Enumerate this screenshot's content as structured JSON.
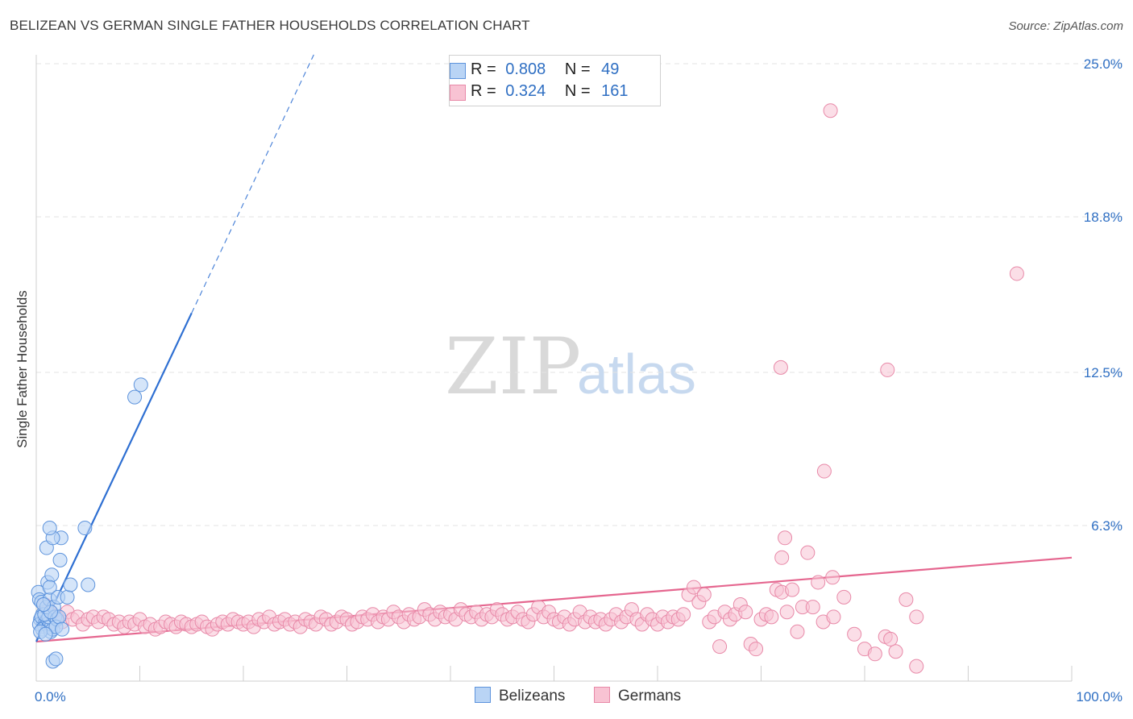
{
  "header": {
    "title": "BELIZEAN VS GERMAN SINGLE FATHER HOUSEHOLDS CORRELATION CHART",
    "source": "Source: ZipAtlas.com"
  },
  "watermark": {
    "zip": "ZIP",
    "atlas": "atlas"
  },
  "legend": {
    "r_label": "R =",
    "n_label": "N =",
    "series": [
      {
        "name": "Belizeans",
        "r": "0.808",
        "n": "49",
        "fill": "#b9d4f5",
        "stroke": "#5d93dc"
      },
      {
        "name": "Germans",
        "r": "0.324",
        "n": "161",
        "fill": "#f8c3d3",
        "stroke": "#e889a8"
      }
    ]
  },
  "chart_data": {
    "type": "scatter",
    "title": "BELIZEAN VS GERMAN SINGLE FATHER HOUSEHOLDS CORRELATION CHART",
    "xlabel": "",
    "ylabel": "Single Father Households",
    "xlim": [
      0,
      100
    ],
    "ylim": [
      0,
      25
    ],
    "x_tick_labels": [
      "0.0%",
      "100.0%"
    ],
    "y_ticks": [
      6.3,
      12.5,
      18.8,
      25.0
    ],
    "y_tick_labels": [
      "6.3%",
      "12.5%",
      "18.8%",
      "25.0%"
    ],
    "grid": true,
    "colors": {
      "belizeans": "#2e6fd2",
      "germans": "#e5668f",
      "axis_text": "#2f6fc3"
    },
    "series": [
      {
        "name": "Belizeans",
        "trend": {
          "x0": 0.0,
          "y0": 1.6,
          "x1": 15.0,
          "y1": 14.9,
          "x_dash_end": 26.8
        },
        "points": [
          [
            0.2,
            3.6
          ],
          [
            0.3,
            3.3
          ],
          [
            0.5,
            3.2
          ],
          [
            0.6,
            2.7
          ],
          [
            0.4,
            2.5
          ],
          [
            0.7,
            2.4
          ],
          [
            0.3,
            2.3
          ],
          [
            0.8,
            2.2
          ],
          [
            0.5,
            2.6
          ],
          [
            0.9,
            2.4
          ],
          [
            1.0,
            2.3
          ],
          [
            0.6,
            2.1
          ],
          [
            1.1,
            2.5
          ],
          [
            1.2,
            2.2
          ],
          [
            1.3,
            2.4
          ],
          [
            1.4,
            2.0
          ],
          [
            1.5,
            2.3
          ],
          [
            1.6,
            2.1
          ],
          [
            1.2,
            2.6
          ],
          [
            0.8,
            2.7
          ],
          [
            1.0,
            3.0
          ],
          [
            1.3,
            3.3
          ],
          [
            1.7,
            3.0
          ],
          [
            1.8,
            2.6
          ],
          [
            2.0,
            2.5
          ],
          [
            1.9,
            2.2
          ],
          [
            2.2,
            2.6
          ],
          [
            2.5,
            2.1
          ],
          [
            1.1,
            4.0
          ],
          [
            1.5,
            4.3
          ],
          [
            1.3,
            3.8
          ],
          [
            2.1,
            3.4
          ],
          [
            3.0,
            3.4
          ],
          [
            3.3,
            3.9
          ],
          [
            2.3,
            4.9
          ],
          [
            2.4,
            5.8
          ],
          [
            1.0,
            5.4
          ],
          [
            1.6,
            5.8
          ],
          [
            1.3,
            6.2
          ],
          [
            4.7,
            6.2
          ],
          [
            5.0,
            3.9
          ],
          [
            9.5,
            11.5
          ],
          [
            10.1,
            12.0
          ],
          [
            1.6,
            0.8
          ],
          [
            1.9,
            0.9
          ],
          [
            0.4,
            2.0
          ],
          [
            0.9,
            1.9
          ],
          [
            1.4,
            2.8
          ],
          [
            0.7,
            3.1
          ]
        ]
      },
      {
        "name": "Germans",
        "trend": {
          "x0": 0.0,
          "y0": 1.6,
          "x1": 100.0,
          "y1": 5.0
        },
        "points": [
          [
            0.8,
            3.1
          ],
          [
            1.2,
            2.9
          ],
          [
            1.5,
            2.7
          ],
          [
            2.0,
            2.6
          ],
          [
            2.5,
            2.4
          ],
          [
            3.0,
            2.8
          ],
          [
            3.5,
            2.5
          ],
          [
            4.0,
            2.6
          ],
          [
            4.5,
            2.3
          ],
          [
            5.0,
            2.5
          ],
          [
            5.5,
            2.6
          ],
          [
            6.0,
            2.4
          ],
          [
            6.5,
            2.6
          ],
          [
            7.0,
            2.5
          ],
          [
            7.5,
            2.3
          ],
          [
            8.0,
            2.4
          ],
          [
            8.5,
            2.2
          ],
          [
            9.0,
            2.4
          ],
          [
            9.5,
            2.3
          ],
          [
            10.0,
            2.5
          ],
          [
            10.5,
            2.2
          ],
          [
            11.0,
            2.3
          ],
          [
            11.5,
            2.1
          ],
          [
            12.0,
            2.2
          ],
          [
            12.5,
            2.4
          ],
          [
            13.0,
            2.3
          ],
          [
            13.5,
            2.2
          ],
          [
            14.0,
            2.4
          ],
          [
            14.5,
            2.3
          ],
          [
            15.0,
            2.2
          ],
          [
            15.5,
            2.3
          ],
          [
            16.0,
            2.4
          ],
          [
            16.5,
            2.2
          ],
          [
            17.0,
            2.1
          ],
          [
            17.5,
            2.3
          ],
          [
            18.0,
            2.4
          ],
          [
            18.5,
            2.3
          ],
          [
            19.0,
            2.5
          ],
          [
            19.5,
            2.4
          ],
          [
            20.0,
            2.3
          ],
          [
            20.5,
            2.4
          ],
          [
            21.0,
            2.2
          ],
          [
            21.5,
            2.5
          ],
          [
            22.0,
            2.4
          ],
          [
            22.5,
            2.6
          ],
          [
            23.0,
            2.3
          ],
          [
            23.5,
            2.4
          ],
          [
            24.0,
            2.5
          ],
          [
            24.5,
            2.3
          ],
          [
            25.0,
            2.4
          ],
          [
            25.5,
            2.2
          ],
          [
            26.0,
            2.5
          ],
          [
            26.5,
            2.4
          ],
          [
            27.0,
            2.3
          ],
          [
            27.5,
            2.6
          ],
          [
            28.0,
            2.5
          ],
          [
            28.5,
            2.3
          ],
          [
            29.0,
            2.4
          ],
          [
            29.5,
            2.6
          ],
          [
            30.0,
            2.5
          ],
          [
            30.5,
            2.3
          ],
          [
            31.0,
            2.4
          ],
          [
            31.5,
            2.6
          ],
          [
            32.0,
            2.5
          ],
          [
            32.5,
            2.7
          ],
          [
            33.0,
            2.4
          ],
          [
            33.5,
            2.6
          ],
          [
            34.0,
            2.5
          ],
          [
            34.5,
            2.8
          ],
          [
            35.0,
            2.6
          ],
          [
            35.5,
            2.4
          ],
          [
            36.0,
            2.7
          ],
          [
            36.5,
            2.5
          ],
          [
            37.0,
            2.6
          ],
          [
            37.5,
            2.9
          ],
          [
            38.0,
            2.7
          ],
          [
            38.5,
            2.5
          ],
          [
            39.0,
            2.8
          ],
          [
            39.5,
            2.6
          ],
          [
            40.0,
            2.7
          ],
          [
            40.5,
            2.5
          ],
          [
            41.0,
            2.9
          ],
          [
            41.5,
            2.7
          ],
          [
            42.0,
            2.6
          ],
          [
            42.5,
            2.8
          ],
          [
            43.0,
            2.5
          ],
          [
            43.5,
            2.7
          ],
          [
            44.0,
            2.6
          ],
          [
            44.5,
            2.9
          ],
          [
            45.0,
            2.7
          ],
          [
            45.5,
            2.5
          ],
          [
            46.0,
            2.6
          ],
          [
            46.5,
            2.8
          ],
          [
            47.0,
            2.5
          ],
          [
            47.5,
            2.4
          ],
          [
            48.0,
            2.7
          ],
          [
            48.5,
            3.0
          ],
          [
            49.0,
            2.6
          ],
          [
            49.5,
            2.8
          ],
          [
            50.0,
            2.5
          ],
          [
            50.5,
            2.4
          ],
          [
            51.0,
            2.6
          ],
          [
            51.5,
            2.3
          ],
          [
            52.0,
            2.5
          ],
          [
            52.5,
            2.8
          ],
          [
            53.0,
            2.4
          ],
          [
            53.5,
            2.6
          ],
          [
            54.0,
            2.4
          ],
          [
            54.5,
            2.5
          ],
          [
            55.0,
            2.3
          ],
          [
            55.5,
            2.5
          ],
          [
            56.0,
            2.7
          ],
          [
            56.5,
            2.4
          ],
          [
            57.0,
            2.6
          ],
          [
            57.5,
            2.9
          ],
          [
            58.0,
            2.5
          ],
          [
            58.5,
            2.3
          ],
          [
            59.0,
            2.7
          ],
          [
            59.5,
            2.5
          ],
          [
            60.0,
            2.3
          ],
          [
            60.5,
            2.6
          ],
          [
            61.0,
            2.4
          ],
          [
            61.5,
            2.6
          ],
          [
            62.0,
            2.5
          ],
          [
            62.5,
            2.7
          ],
          [
            63.0,
            3.5
          ],
          [
            63.5,
            3.8
          ],
          [
            64.0,
            3.2
          ],
          [
            64.5,
            3.5
          ],
          [
            65.0,
            2.4
          ],
          [
            65.5,
            2.6
          ],
          [
            66.0,
            1.4
          ],
          [
            66.5,
            2.8
          ],
          [
            67.0,
            2.5
          ],
          [
            67.5,
            2.7
          ],
          [
            68.0,
            3.1
          ],
          [
            68.5,
            2.8
          ],
          [
            69.0,
            1.5
          ],
          [
            69.5,
            1.3
          ],
          [
            70.0,
            2.5
          ],
          [
            70.5,
            2.7
          ],
          [
            71.0,
            2.6
          ],
          [
            71.5,
            3.7
          ],
          [
            72.0,
            3.6
          ],
          [
            72.5,
            2.8
          ],
          [
            73.0,
            3.7
          ],
          [
            73.5,
            2.0
          ],
          [
            74.0,
            3.0
          ],
          [
            74.5,
            5.2
          ],
          [
            75.0,
            3.0
          ],
          [
            75.5,
            4.0
          ],
          [
            76.0,
            2.4
          ],
          [
            77.0,
            2.6
          ],
          [
            78.0,
            3.4
          ],
          [
            79.0,
            1.9
          ],
          [
            80.0,
            1.3
          ],
          [
            81.0,
            1.1
          ],
          [
            82.0,
            1.8
          ],
          [
            83.0,
            1.2
          ],
          [
            84.0,
            3.3
          ],
          [
            85.0,
            2.6
          ]
        ],
        "outliers": [
          [
            76.7,
            23.1
          ],
          [
            94.7,
            16.5
          ],
          [
            71.9,
            12.7
          ],
          [
            82.2,
            12.6
          ],
          [
            76.1,
            8.5
          ],
          [
            72.3,
            5.8
          ],
          [
            72.0,
            5.0
          ],
          [
            76.9,
            4.2
          ],
          [
            82.5,
            1.7
          ],
          [
            85.0,
            0.6
          ]
        ]
      }
    ]
  }
}
